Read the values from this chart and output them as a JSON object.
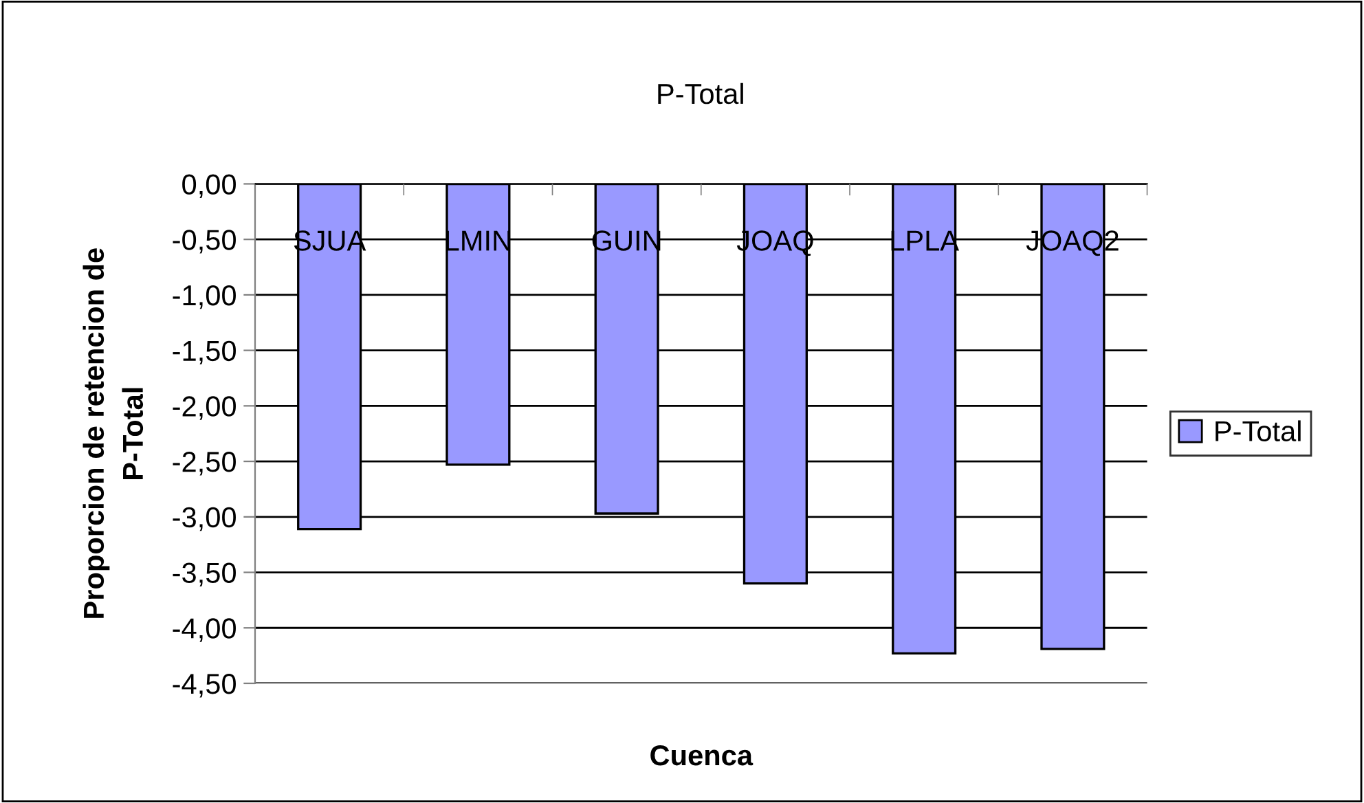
{
  "chart_data": {
    "type": "bar",
    "title": "P-Total",
    "xlabel": "Cuenca",
    "ylabel": "Proporcion de retencion de\nP-Total",
    "categories": [
      "SJUA",
      "LMIN",
      "GUIN",
      "JOAQ",
      "LPLA",
      "JOAQ2"
    ],
    "series": [
      {
        "name": "P-Total",
        "color": "#9999ff",
        "values": [
          -3.11,
          -2.53,
          -2.97,
          -3.6,
          -4.23,
          -4.19
        ]
      }
    ],
    "ylim": [
      -4.5,
      0
    ],
    "yticks": [
      {
        "value": 0,
        "label": "0,00"
      },
      {
        "value": -0.5,
        "label": "-0,50"
      },
      {
        "value": -1,
        "label": "-1,00"
      },
      {
        "value": -1.5,
        "label": "-1,50"
      },
      {
        "value": -2,
        "label": "-2,00"
      },
      {
        "value": -2.5,
        "label": "-2,50"
      },
      {
        "value": -3,
        "label": "-3,00"
      },
      {
        "value": -3.5,
        "label": "-3,50"
      },
      {
        "value": -4,
        "label": "-4,00"
      },
      {
        "value": -4.5,
        "label": "-4,50"
      }
    ],
    "grid": "y",
    "legend": "right"
  }
}
